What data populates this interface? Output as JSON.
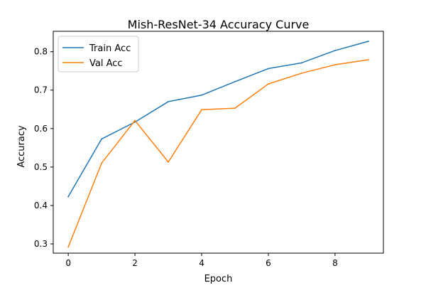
{
  "chart_data": {
    "type": "line",
    "title": "Mish-ResNet-34 Accuracy Curve",
    "xlabel": "Epoch",
    "ylabel": "Accuracy",
    "x": [
      0,
      1,
      2,
      3,
      4,
      5,
      6,
      7,
      8,
      9
    ],
    "xlim": [
      -0.45,
      9.45
    ],
    "ylim": [
      0.276,
      0.853
    ],
    "xticks": [
      0,
      2,
      4,
      6,
      8
    ],
    "yticks": [
      0.3,
      0.4,
      0.5,
      0.6,
      0.7,
      0.8
    ],
    "xtick_labels": [
      "0",
      "2",
      "4",
      "6",
      "8"
    ],
    "ytick_labels": [
      "0.3",
      "0.4",
      "0.5",
      "0.6",
      "0.7",
      "0.8"
    ],
    "grid": false,
    "legend_position": "top-left",
    "series": [
      {
        "name": "Train Acc",
        "color": "#1f77b4",
        "values": [
          0.423,
          0.573,
          0.617,
          0.67,
          0.687,
          0.722,
          0.756,
          0.771,
          0.803,
          0.827
        ]
      },
      {
        "name": "Val Acc",
        "color": "#ff7f0e",
        "values": [
          0.292,
          0.51,
          0.621,
          0.513,
          0.649,
          0.653,
          0.716,
          0.744,
          0.766,
          0.779
        ]
      }
    ]
  }
}
